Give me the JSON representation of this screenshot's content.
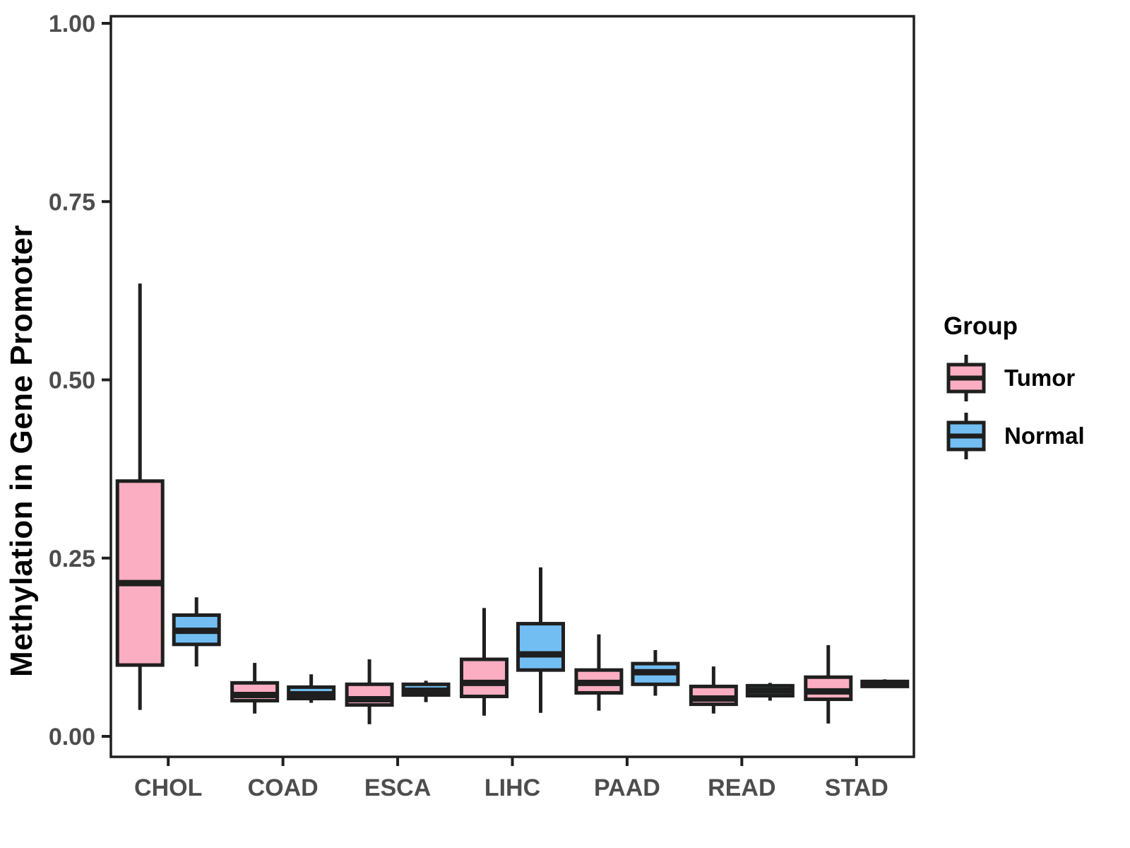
{
  "chart_data": {
    "type": "boxplot",
    "title": "",
    "xlabel": "",
    "ylabel": "Methylation in Gene Promoter",
    "ylim": [
      0,
      1
    ],
    "yticks": [
      0.0,
      0.25,
      0.5,
      0.75,
      1.0
    ],
    "ytick_labels": [
      "0.00",
      "0.25",
      "0.50",
      "0.75",
      "1.00"
    ],
    "categories": [
      "CHOL",
      "COAD",
      "ESCA",
      "LIHC",
      "PAAD",
      "READ",
      "STAD"
    ],
    "grid": "off",
    "legend": {
      "title": "Group",
      "position": "right",
      "entries": [
        {
          "label": "Tumor",
          "color": "#FBAEC1"
        },
        {
          "label": "Normal",
          "color": "#72BEF2"
        }
      ]
    },
    "series": [
      {
        "name": "Tumor",
        "color": "#FBAEC1",
        "boxes": [
          {
            "category": "CHOL",
            "min": 0.037,
            "q1": 0.1,
            "median": 0.215,
            "q3": 0.358,
            "max": 0.635
          },
          {
            "category": "COAD",
            "min": 0.032,
            "q1": 0.05,
            "median": 0.058,
            "q3": 0.075,
            "max": 0.103
          },
          {
            "category": "ESCA",
            "min": 0.017,
            "q1": 0.044,
            "median": 0.052,
            "q3": 0.073,
            "max": 0.108
          },
          {
            "category": "LIHC",
            "min": 0.029,
            "q1": 0.056,
            "median": 0.075,
            "q3": 0.108,
            "max": 0.18
          },
          {
            "category": "PAAD",
            "min": 0.036,
            "q1": 0.061,
            "median": 0.075,
            "q3": 0.093,
            "max": 0.143
          },
          {
            "category": "READ",
            "min": 0.032,
            "q1": 0.045,
            "median": 0.053,
            "q3": 0.07,
            "max": 0.098
          },
          {
            "category": "STAD",
            "min": 0.018,
            "q1": 0.052,
            "median": 0.063,
            "q3": 0.083,
            "max": 0.128
          }
        ]
      },
      {
        "name": "Normal",
        "color": "#72BEF2",
        "boxes": [
          {
            "category": "CHOL",
            "min": 0.098,
            "q1": 0.129,
            "median": 0.148,
            "q3": 0.17,
            "max": 0.195
          },
          {
            "category": "COAD",
            "min": 0.047,
            "q1": 0.053,
            "median": 0.059,
            "q3": 0.069,
            "max": 0.087
          },
          {
            "category": "ESCA",
            "min": 0.048,
            "q1": 0.058,
            "median": 0.064,
            "q3": 0.073,
            "max": 0.078
          },
          {
            "category": "LIHC",
            "min": 0.033,
            "q1": 0.093,
            "median": 0.115,
            "q3": 0.158,
            "max": 0.237
          },
          {
            "category": "PAAD",
            "min": 0.057,
            "q1": 0.073,
            "median": 0.09,
            "q3": 0.102,
            "max": 0.121
          },
          {
            "category": "READ",
            "min": 0.05,
            "q1": 0.057,
            "median": 0.064,
            "q3": 0.071,
            "max": 0.075
          },
          {
            "category": "STAD",
            "min": 0.068,
            "q1": 0.07,
            "median": 0.073,
            "q3": 0.077,
            "max": 0.08
          }
        ]
      }
    ],
    "style": {
      "line_color": "#1F1F1F",
      "axis_text_color": "#4D4D4D",
      "background": "#FFFFFF"
    }
  }
}
